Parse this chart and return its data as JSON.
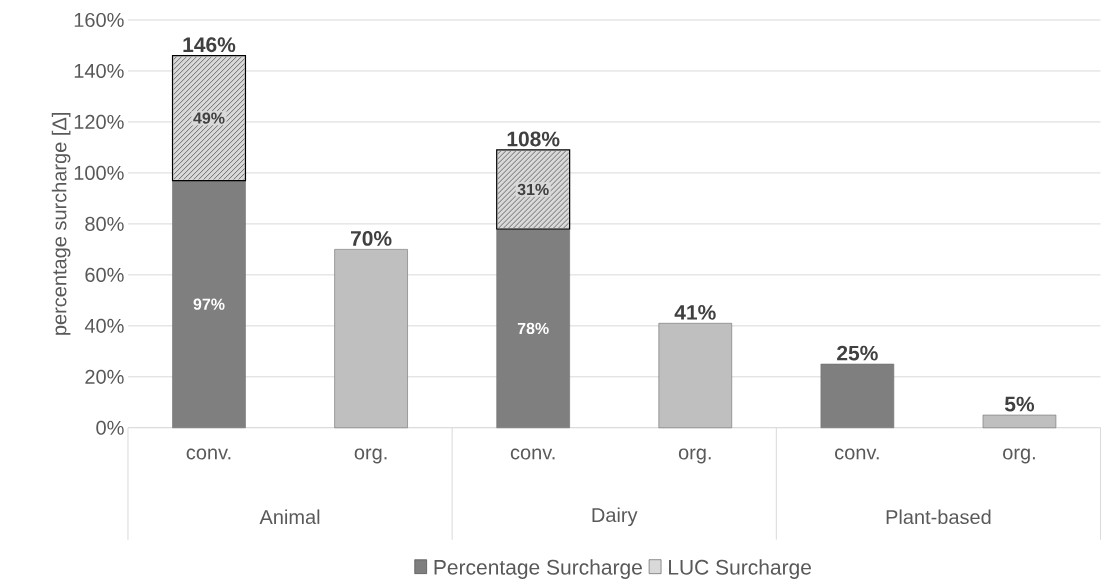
{
  "chart_data": {
    "type": "bar",
    "stacked": true,
    "ylabel": "percentage surcharge [Δ]",
    "categories": [
      "conv.",
      "org.",
      "conv.",
      "org.",
      "conv.",
      "org."
    ],
    "annotations": [
      "Animal",
      "Dairy",
      "Plant-based"
    ],
    "series": [
      {
        "name": "Percentage Surcharge",
        "color": "#7f7f7f",
        "colors": [
          "#7f7f7f",
          "#bfbfbf",
          "#7f7f7f",
          "#bfbfbf",
          "#7f7f7f",
          "#bfbfbf"
        ],
        "values": [
          97,
          70,
          78,
          41,
          25,
          5
        ],
        "value_labels": [
          "97%",
          null,
          "78%",
          null,
          null,
          null
        ]
      },
      {
        "name": "LUC Surcharge",
        "color": "#d9d9d9",
        "values": [
          49,
          null,
          31,
          null,
          null,
          null
        ],
        "value_labels": [
          "49%",
          null,
          "31%",
          null,
          null,
          null
        ]
      }
    ],
    "totals": [
      "146%",
      "70%",
      "108%",
      "41%",
      "25%",
      "5%"
    ],
    "ylim": [
      0,
      160
    ],
    "yticks": [
      {
        "value": 0,
        "label": "0%"
      },
      {
        "value": 20,
        "label": "20%"
      },
      {
        "value": 40,
        "label": "40%"
      },
      {
        "value": 60,
        "label": "60%"
      },
      {
        "value": 80,
        "label": "80%"
      },
      {
        "value": 100,
        "label": "100%"
      },
      {
        "value": 120,
        "label": "120%"
      },
      {
        "value": 140,
        "label": "140%"
      },
      {
        "value": 160,
        "label": "160%"
      }
    ],
    "grid": "y",
    "legend": "bottom"
  }
}
